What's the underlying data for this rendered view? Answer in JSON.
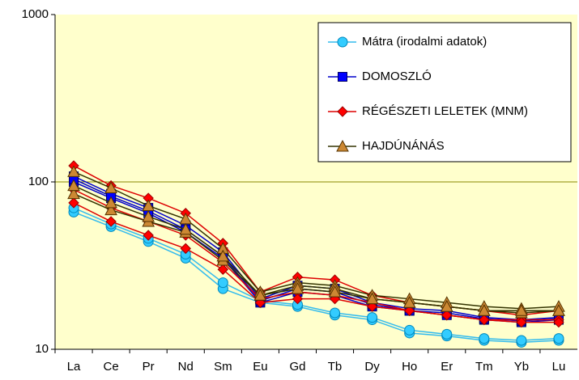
{
  "chart_data": {
    "type": "line",
    "log_scale": true,
    "grid": true,
    "legend": "top-right",
    "categories": [
      "La",
      "Ce",
      "Pr",
      "Nd",
      "Sm",
      "Eu",
      "Gd",
      "Tb",
      "Dy",
      "Ho",
      "Er",
      "Tm",
      "Yb",
      "Lu"
    ],
    "ylim": [
      10,
      1000
    ],
    "yticks": [
      10,
      100,
      1000
    ],
    "series": [
      {
        "name": "Mátra (irodalmi adatok)",
        "color": "#33ccff",
        "line_color": "#33bbee",
        "marker": "circle",
        "samples": [
          [
            66,
            54,
            44,
            35,
            23,
            19,
            18,
            16,
            15,
            12.5,
            12,
            11.3,
            11,
            11.3
          ],
          [
            70,
            56,
            46,
            37,
            25,
            19.5,
            18.5,
            16.5,
            15.5,
            13,
            12.3,
            11.6,
            11.3,
            11.6
          ]
        ]
      },
      {
        "name": "DOMOSZLÓ",
        "color": "#0000ff",
        "line_color": "#0000cc",
        "marker": "square",
        "samples": [
          [
            108,
            85,
            70,
            55,
            38,
            20,
            24,
            23,
            19,
            17.5,
            17,
            15.5,
            15,
            15.5
          ],
          [
            100,
            80,
            65,
            50,
            35,
            19,
            22,
            21,
            18,
            17,
            16,
            15,
            14.5,
            15
          ],
          [
            104,
            82,
            67,
            52,
            36,
            19.5,
            23,
            22,
            18.5,
            17,
            16.5,
            15.2,
            14.8,
            15.2
          ]
        ]
      },
      {
        "name": "RÉGÉSZETI LELETEK (MNM)",
        "color": "#ff0000",
        "line_color": "#dd0000",
        "marker": "diamond",
        "samples": [
          [
            125,
            95,
            80,
            65,
            43,
            22,
            27,
            26,
            21,
            19,
            18,
            17,
            16,
            17
          ],
          [
            90,
            70,
            58,
            48,
            33,
            20,
            22,
            21,
            19,
            17,
            16,
            15,
            15,
            15
          ],
          [
            75,
            58,
            48,
            40,
            30,
            19,
            20,
            20,
            18,
            17,
            16,
            15,
            14.5,
            14.5
          ]
        ]
      },
      {
        "name": "HAJDÚNÁNÁS",
        "color": "#cc8833",
        "line_color": "#333300",
        "marker": "triangle",
        "samples": [
          [
            115,
            92,
            72,
            60,
            40,
            22,
            25,
            24,
            21,
            20,
            19,
            18,
            17.5,
            18
          ],
          [
            85,
            68,
            58,
            50,
            34,
            21,
            24,
            23,
            20,
            19,
            18,
            17,
            16.5,
            17
          ],
          [
            95,
            75,
            62,
            52,
            36,
            21,
            23,
            22,
            20,
            19,
            18,
            17,
            17,
            17
          ]
        ]
      }
    ]
  }
}
